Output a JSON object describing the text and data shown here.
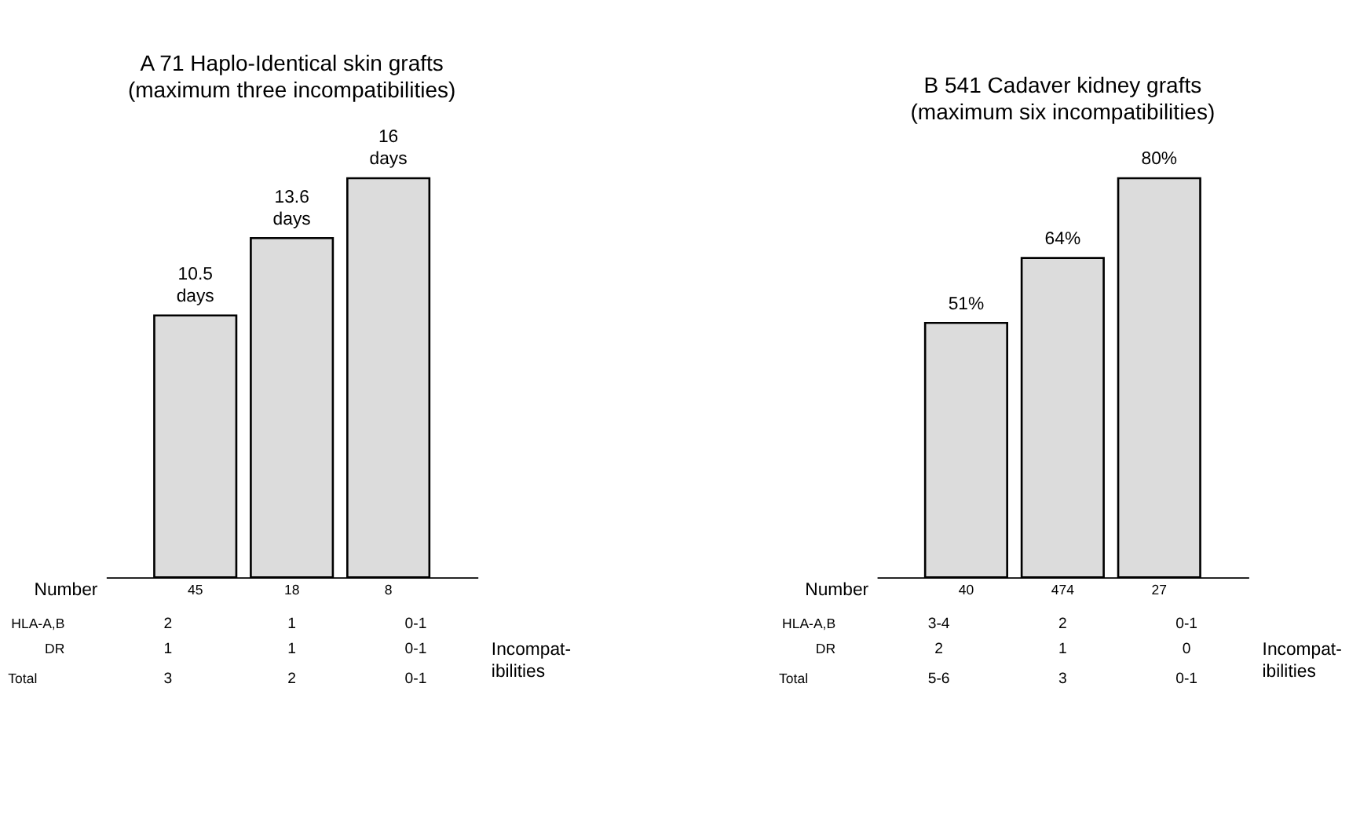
{
  "chart_data": [
    {
      "type": "bar",
      "title": "A   71 Haplo-Identical skin grafts",
      "subtitle": "(maximum three incompatibilities)",
      "categories": [
        "45",
        "18",
        "8"
      ],
      "values": [
        10.5,
        13.6,
        16
      ],
      "color": "#dcdcdc",
      "data_labels": true,
      "value_labels": [
        "10.5\ndays",
        "13.6\ndays",
        "16\ndays"
      ],
      "annotations": [
        "Number",
        "HLA-A,B",
        "DR",
        "Total",
        "Incompat-\nibilities",
        "2",
        "1",
        "0-1",
        "1",
        "1",
        "0-1",
        "3",
        "2",
        "0-1"
      ]
    },
    {
      "type": "bar",
      "title": "B   541 Cadaver kidney grafts",
      "subtitle": "(maximum six incompatibilities)",
      "categories": [
        "40",
        "474",
        "27"
      ],
      "values": [
        51,
        64,
        80
      ],
      "color": "#dcdcdc",
      "data_labels": true,
      "value_labels": [
        "51%",
        "64%",
        "80%"
      ],
      "annotations": [
        "Number",
        "HLA-A,B",
        "DR",
        "Total",
        "Incompat-\nibilities",
        "3-4",
        "2",
        "0-1",
        "2",
        "1",
        "0",
        "5-6",
        "3",
        "0-1"
      ]
    }
  ]
}
